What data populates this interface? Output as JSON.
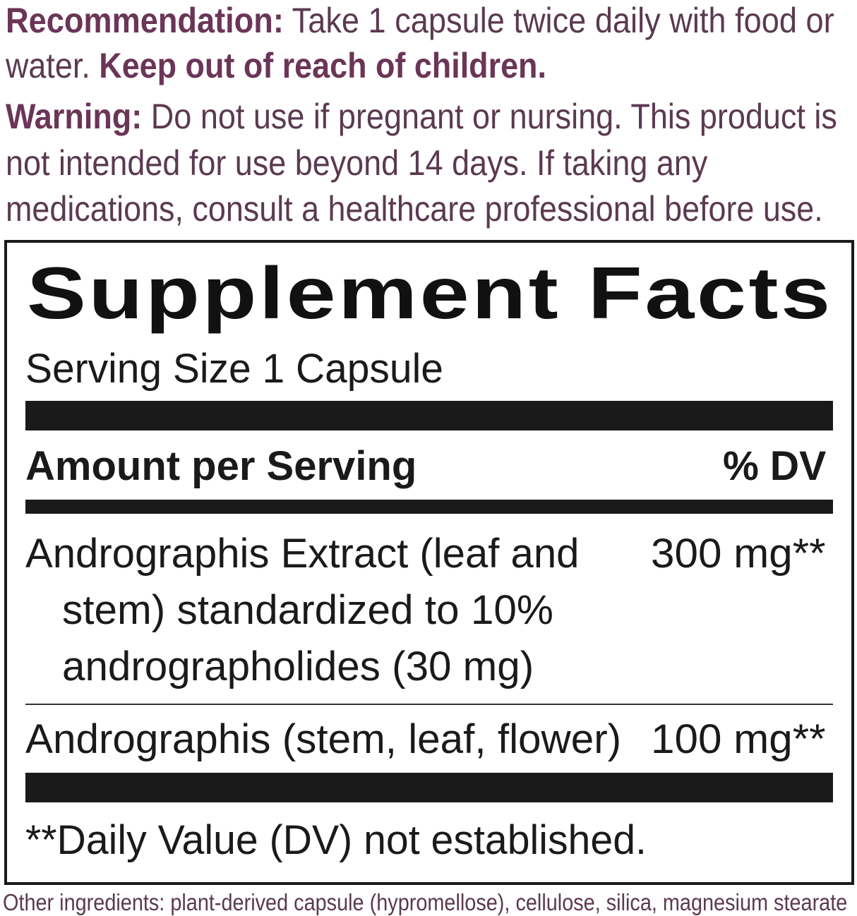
{
  "directions": {
    "recommendation_label": "Recommendation:",
    "recommendation_text_1": "Take 1 capsule twice daily with food or",
    "recommendation_text_2": "water.",
    "keep_out": "Keep out of reach of children.",
    "warning_label": "Warning:",
    "warning_text_1": "Do not use if pregnant or nursing. This product is",
    "warning_text_2": "not intended for use beyond 14 days. If taking any",
    "warning_text_3": "medications, consult a healthcare professional before use."
  },
  "facts": {
    "title": "Supplement Facts",
    "serving_size": "Serving Size 1 Capsule",
    "amount_header": "Amount per Serving",
    "dv_header": "% DV",
    "rows": [
      {
        "lines": [
          "Andrographis Extract (leaf and",
          "stem) standardized to 10%",
          "andrographolides (30 mg)"
        ],
        "amount": "300 mg**"
      },
      {
        "lines": [
          "Andrographis (stem, leaf, flower)"
        ],
        "amount": "100 mg**"
      }
    ],
    "footnote": "**Daily Value (DV) not established."
  },
  "other_ingredients": "Other ingredients: plant-derived capsule (hypromellose), cellulose, silica, magnesium stearate",
  "colors": {
    "accent": "#6b3557",
    "text": "#5b3a50",
    "ink": "#1a1a1a"
  }
}
